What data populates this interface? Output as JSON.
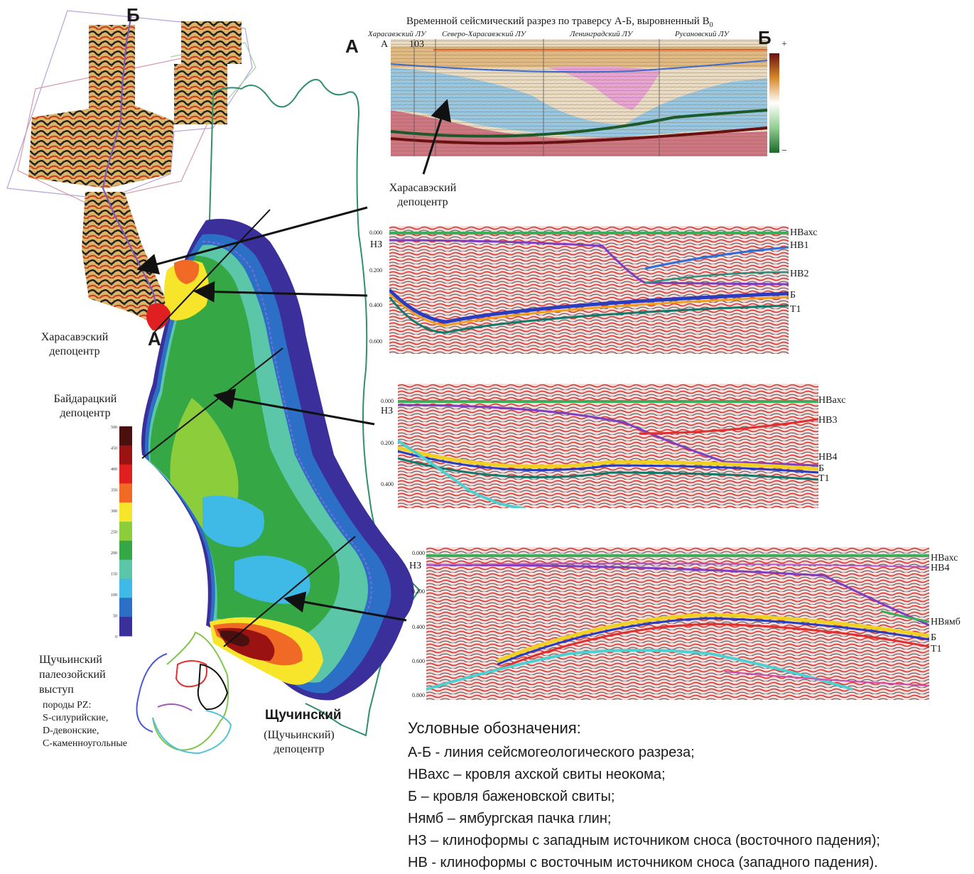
{
  "top_section": {
    "title": "Временной сейсмический разрез по траверсу А-Б, выровненный В",
    "title_sub": "0",
    "point_a": "А",
    "point_b": "Б",
    "end_a": "A",
    "end_b": "Б",
    "well": "103",
    "areas": [
      "Харасавэский ЛУ",
      "Северо-Харасавэский ЛУ",
      "Ленинградский ЛУ",
      "Русановский ЛУ"
    ],
    "scale_plus": "+",
    "scale_minus": "−"
  },
  "map": {
    "label_b": "Б",
    "label_a": "А",
    "depocenters": [
      {
        "line1": "Харасавэский",
        "line2": "депоцентр"
      },
      {
        "line1": "Байдарацкий",
        "line2": "депоцентр"
      },
      {
        "line1": "Харасавэский",
        "line2": "депоцентр"
      }
    ],
    "shchuchinsky_title": "Щучинский",
    "shchuchinsky_sub1": "(Щучьинский)",
    "shchuchinsky_sub2": "депоцентр",
    "paleo": {
      "line1": "Щучьинский",
      "line2": "палеозойский",
      "line3": "выступ",
      "line4": "породы PZ:",
      "line5": "S-силурийские,",
      "line6": "D-девонские,",
      "line7": "C-каменноугольные"
    },
    "colorbar_ticks": [
      "500",
      "450",
      "400",
      "350",
      "300",
      "250",
      "200",
      "150",
      "100",
      "50",
      "0"
    ],
    "colorbar_colors": [
      "#4a0f0f",
      "#9b1212",
      "#e02020",
      "#f06a25",
      "#f6e52a",
      "#8ccd3c",
      "#35a845",
      "#5cc6a8",
      "#3fb9e6",
      "#2b6fc6",
      "#3a2f9b"
    ]
  },
  "sections": [
    {
      "nz": "НЗ",
      "times": [
        "0.000",
        "0.200",
        "0.400",
        "0.600"
      ],
      "labels": [
        "НВахс",
        "НВ1",
        "НВ2",
        "Б",
        "Т1"
      ]
    },
    {
      "nz": "НЗ",
      "times": [
        "0.000",
        "0.200",
        "0.400"
      ],
      "labels": [
        "НВахс",
        "НВ3",
        "НВ4",
        "Б",
        "Т1"
      ]
    },
    {
      "nz": "НЗ",
      "times": [
        "0.000",
        "0.200",
        "0.400",
        "0.600",
        "0.800"
      ],
      "labels": [
        "НВахс",
        "НВ4",
        "НВямб",
        "Б",
        "Т1"
      ]
    }
  ],
  "legend": {
    "title": "Условные обозначения:",
    "items": [
      "А-Б - линия сейсмогеологического разреза;",
      "НВахс – кровля ахской свиты неокома;",
      "Б – кровля баженовской свиты;",
      "Нямб – ямбургская пачка глин;",
      "НЗ – клиноформы с западным источником сноса (восточного падения);",
      "НВ - клиноформы с восточным источником сноса (западного падения)."
    ]
  }
}
